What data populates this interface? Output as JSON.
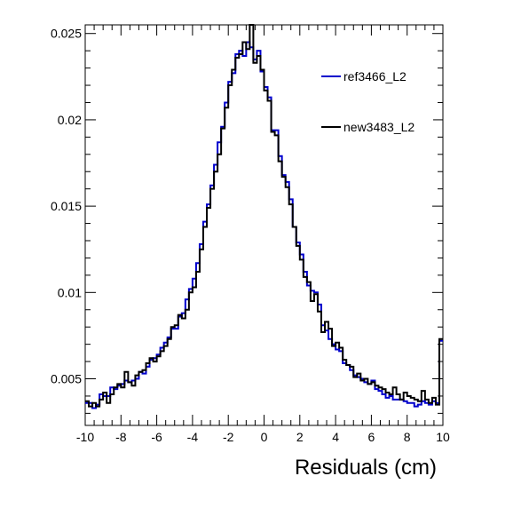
{
  "chart_data": {
    "type": "line",
    "style": "step-histogram",
    "title": "",
    "xlabel": "Residuals (cm)",
    "ylabel": "",
    "xlim": [
      -10,
      10
    ],
    "ylim": [
      0.0023,
      0.0255
    ],
    "grid": false,
    "legend_position": "top-right",
    "x_ticks": [
      -10,
      -8,
      -6,
      -4,
      -2,
      0,
      2,
      4,
      6,
      8,
      10
    ],
    "y_ticks": [
      0.005,
      0.01,
      0.015,
      0.02,
      0.025
    ],
    "y_tick_labels": [
      "0.005",
      "0.01",
      "0.015",
      "0.02",
      "0.025"
    ],
    "colors": {
      "ref": "#0000cc",
      "new": "#000000"
    },
    "series": [
      {
        "name": "ref3466_L2",
        "color": "#0000cc",
        "bin_edges_start": -10,
        "bin_width": 0.2,
        "values": [
          0.0036,
          0.0036,
          0.0033,
          0.0035,
          0.0041,
          0.004,
          0.004,
          0.0045,
          0.0044,
          0.0046,
          0.0047,
          0.0049,
          0.0048,
          0.0049,
          0.005,
          0.0054,
          0.0053,
          0.0057,
          0.0061,
          0.0062,
          0.0064,
          0.0068,
          0.0071,
          0.0074,
          0.0079,
          0.0079,
          0.0086,
          0.0088,
          0.0096,
          0.0102,
          0.0108,
          0.0117,
          0.0128,
          0.0141,
          0.0151,
          0.0162,
          0.0174,
          0.0187,
          0.0196,
          0.021,
          0.0222,
          0.0227,
          0.0238,
          0.024,
          0.0237,
          0.0245,
          0.0242,
          0.0235,
          0.024,
          0.0228,
          0.0219,
          0.0213,
          0.0194,
          0.0194,
          0.0179,
          0.0168,
          0.0164,
          0.0154,
          0.0138,
          0.0129,
          0.0122,
          0.0112,
          0.0104,
          0.0101,
          0.01,
          0.0093,
          0.0081,
          0.0078,
          0.0073,
          0.007,
          0.0067,
          0.0066,
          0.0059,
          0.0058,
          0.0055,
          0.0052,
          0.0051,
          0.005,
          0.0048,
          0.0047,
          0.0049,
          0.0044,
          0.0043,
          0.0041,
          0.0039,
          0.004,
          0.0038,
          0.0038,
          0.0038,
          0.0037,
          0.0036,
          0.0036,
          0.0034,
          0.0035,
          0.0037,
          0.0036,
          0.0035,
          0.0037,
          0.0036,
          0.0072
        ]
      },
      {
        "name": "new3483_L2",
        "color": "#000000",
        "bin_edges_start": -10,
        "bin_width": 0.2,
        "values": [
          0.0037,
          0.0034,
          0.0036,
          0.0034,
          0.0038,
          0.0042,
          0.0036,
          0.0041,
          0.0045,
          0.0047,
          0.0045,
          0.0054,
          0.0048,
          0.0046,
          0.0052,
          0.0054,
          0.0055,
          0.0059,
          0.0062,
          0.006,
          0.0063,
          0.0066,
          0.0069,
          0.0073,
          0.008,
          0.0081,
          0.0087,
          0.0085,
          0.009,
          0.01,
          0.0103,
          0.0112,
          0.0125,
          0.0138,
          0.0149,
          0.016,
          0.017,
          0.018,
          0.0195,
          0.0207,
          0.022,
          0.0229,
          0.0236,
          0.0238,
          0.0245,
          0.0241,
          0.0255,
          0.0233,
          0.0237,
          0.0229,
          0.0217,
          0.0211,
          0.0193,
          0.0191,
          0.0176,
          0.0167,
          0.0161,
          0.0151,
          0.0138,
          0.0127,
          0.0119,
          0.0109,
          0.0106,
          0.0095,
          0.0099,
          0.0089,
          0.0077,
          0.0083,
          0.0079,
          0.0069,
          0.0071,
          0.0068,
          0.0061,
          0.0058,
          0.0057,
          0.0051,
          0.0053,
          0.0049,
          0.005,
          0.0047,
          0.0048,
          0.0046,
          0.0045,
          0.0044,
          0.0042,
          0.0041,
          0.0045,
          0.0041,
          0.0038,
          0.0042,
          0.004,
          0.0039,
          0.0038,
          0.0037,
          0.0043,
          0.0038,
          0.0036,
          0.0039,
          0.0035,
          0.0073
        ]
      }
    ]
  }
}
